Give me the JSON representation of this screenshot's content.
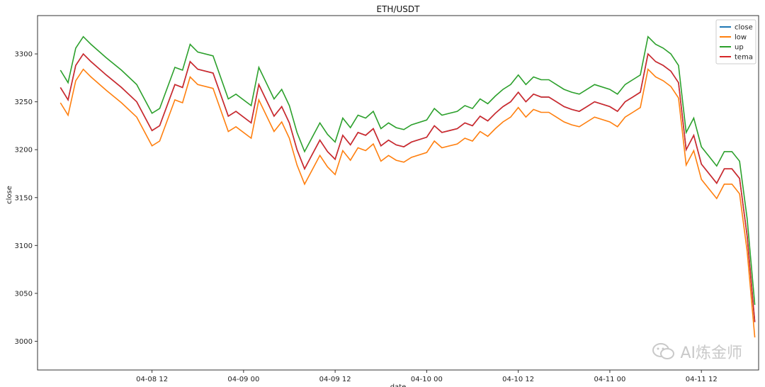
{
  "chart_data": {
    "type": "line",
    "title": "ETH/USDT",
    "ylabel": "close",
    "xlabel": "date",
    "ylim": [
      2970,
      3340
    ],
    "x_range": [
      "2022-04-07T21:00",
      "2022-04-11T19:30"
    ],
    "y_ticks": [
      3000,
      3050,
      3100,
      3150,
      3200,
      3250,
      3300
    ],
    "x_ticks": [
      {
        "t": "2022-04-08T12:00",
        "label": "04-08 12"
      },
      {
        "t": "2022-04-09T00:00",
        "label": "04-09 00"
      },
      {
        "t": "2022-04-09T12:00",
        "label": "04-09 12"
      },
      {
        "t": "2022-04-10T00:00",
        "label": "04-10 00"
      },
      {
        "t": "2022-04-10T12:00",
        "label": "04-10 12"
      },
      {
        "t": "2022-04-11T00:00",
        "label": "04-11 00"
      },
      {
        "t": "2022-04-11T12:00",
        "label": "04-11 12"
      }
    ],
    "legend_position": "top-right",
    "series": [
      {
        "name": "close",
        "color": "#1f77b4",
        "points": [
          [
            "2022-04-08T00:00",
            3265
          ],
          [
            "2022-04-08T01:00",
            3252
          ],
          [
            "2022-04-08T02:00",
            3288
          ],
          [
            "2022-04-08T03:00",
            3300
          ],
          [
            "2022-04-08T04:00",
            3292
          ],
          [
            "2022-04-08T06:00",
            3278
          ],
          [
            "2022-04-08T08:00",
            3265
          ],
          [
            "2022-04-08T10:00",
            3250
          ],
          [
            "2022-04-08T12:00",
            3220
          ],
          [
            "2022-04-08T13:00",
            3225
          ],
          [
            "2022-04-08T15:00",
            3268
          ],
          [
            "2022-04-08T16:00",
            3265
          ],
          [
            "2022-04-08T17:00",
            3292
          ],
          [
            "2022-04-08T18:00",
            3284
          ],
          [
            "2022-04-08T20:00",
            3280
          ],
          [
            "2022-04-08T22:00",
            3235
          ],
          [
            "2022-04-08T23:00",
            3240
          ],
          [
            "2022-04-09T01:00",
            3228
          ],
          [
            "2022-04-09T02:00",
            3268
          ],
          [
            "2022-04-09T04:00",
            3235
          ],
          [
            "2022-04-09T05:00",
            3245
          ],
          [
            "2022-04-09T06:00",
            3228
          ],
          [
            "2022-04-09T07:00",
            3200
          ],
          [
            "2022-04-09T08:00",
            3180
          ],
          [
            "2022-04-09T09:00",
            3195
          ],
          [
            "2022-04-09T10:00",
            3210
          ],
          [
            "2022-04-09T11:00",
            3198
          ],
          [
            "2022-04-09T12:00",
            3190
          ],
          [
            "2022-04-09T13:00",
            3215
          ],
          [
            "2022-04-09T14:00",
            3205
          ],
          [
            "2022-04-09T15:00",
            3218
          ],
          [
            "2022-04-09T16:00",
            3215
          ],
          [
            "2022-04-09T17:00",
            3222
          ],
          [
            "2022-04-09T18:00",
            3204
          ],
          [
            "2022-04-09T19:00",
            3210
          ],
          [
            "2022-04-09T20:00",
            3205
          ],
          [
            "2022-04-09T21:00",
            3203
          ],
          [
            "2022-04-09T22:00",
            3208
          ],
          [
            "2022-04-10T00:00",
            3213
          ],
          [
            "2022-04-10T01:00",
            3225
          ],
          [
            "2022-04-10T02:00",
            3218
          ],
          [
            "2022-04-10T04:00",
            3222
          ],
          [
            "2022-04-10T05:00",
            3228
          ],
          [
            "2022-04-10T06:00",
            3225
          ],
          [
            "2022-04-10T07:00",
            3235
          ],
          [
            "2022-04-10T08:00",
            3230
          ],
          [
            "2022-04-10T09:00",
            3238
          ],
          [
            "2022-04-10T10:00",
            3245
          ],
          [
            "2022-04-10T11:00",
            3250
          ],
          [
            "2022-04-10T12:00",
            3260
          ],
          [
            "2022-04-10T13:00",
            3250
          ],
          [
            "2022-04-10T14:00",
            3258
          ],
          [
            "2022-04-10T15:00",
            3255
          ],
          [
            "2022-04-10T16:00",
            3255
          ],
          [
            "2022-04-10T17:00",
            3250
          ],
          [
            "2022-04-10T18:00",
            3245
          ],
          [
            "2022-04-10T19:00",
            3242
          ],
          [
            "2022-04-10T20:00",
            3240
          ],
          [
            "2022-04-10T21:00",
            3245
          ],
          [
            "2022-04-10T22:00",
            3250
          ],
          [
            "2022-04-11T00:00",
            3245
          ],
          [
            "2022-04-11T01:00",
            3240
          ],
          [
            "2022-04-11T02:00",
            3250
          ],
          [
            "2022-04-11T03:00",
            3255
          ],
          [
            "2022-04-11T04:00",
            3260
          ],
          [
            "2022-04-11T05:00",
            3300
          ],
          [
            "2022-04-11T06:00",
            3292
          ],
          [
            "2022-04-11T07:00",
            3288
          ],
          [
            "2022-04-11T08:00",
            3282
          ],
          [
            "2022-04-11T09:00",
            3270
          ],
          [
            "2022-04-11T10:00",
            3200
          ],
          [
            "2022-04-11T11:00",
            3215
          ],
          [
            "2022-04-11T12:00",
            3185
          ],
          [
            "2022-04-11T13:00",
            3175
          ],
          [
            "2022-04-11T14:00",
            3165
          ],
          [
            "2022-04-11T15:00",
            3180
          ],
          [
            "2022-04-11T16:00",
            3180
          ],
          [
            "2022-04-11T17:00",
            3170
          ],
          [
            "2022-04-11T18:00",
            3110
          ],
          [
            "2022-04-11T19:00",
            3020
          ]
        ]
      },
      {
        "name": "low",
        "color": "#ff7f0e",
        "points": []
      },
      {
        "name": "up",
        "color": "#2ca02c",
        "points": []
      },
      {
        "name": "tema",
        "color": "#d62728",
        "points": []
      }
    ]
  },
  "watermark": "AI炼金师"
}
